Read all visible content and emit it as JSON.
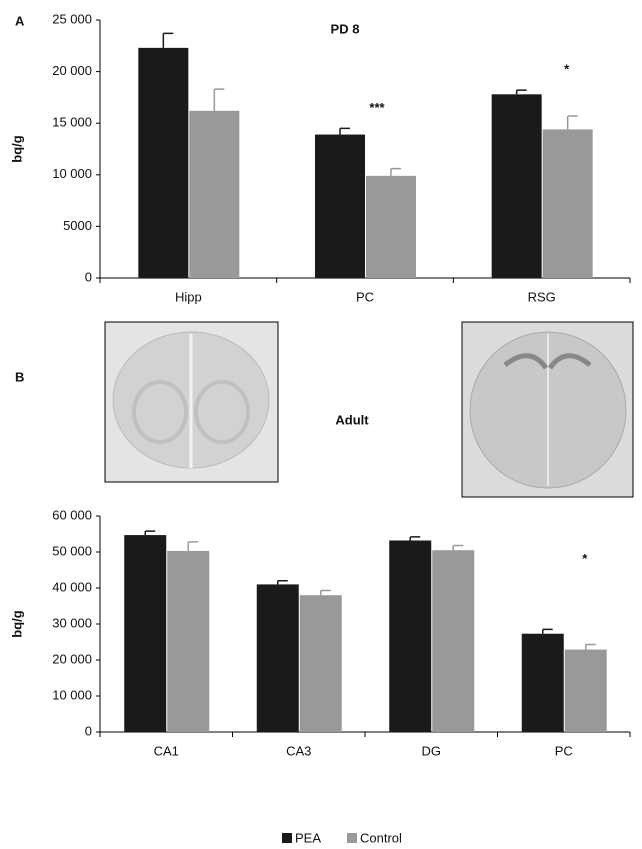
{
  "chart_data": [
    {
      "type": "bar",
      "panel": "A",
      "title": "PD 8",
      "y_label": "bq/g",
      "categories": [
        "Hipp",
        "PC",
        "RSG"
      ],
      "series": [
        {
          "color": "#1a1a1a",
          "values": [
            22300,
            13900,
            17800
          ],
          "errors": [
            1400,
            600,
            400
          ]
        },
        {
          "color": "#999999",
          "values": [
            16200,
            9900,
            14400
          ],
          "errors": [
            2100,
            700,
            1300
          ]
        }
      ],
      "significance": [
        null,
        "***",
        "*"
      ],
      "ylim": [
        0,
        25000
      ],
      "yticks": [
        0,
        5000,
        {
          "value": 10000,
          "label": "10 000"
        },
        {
          "value": 15000,
          "label": "15 000"
        },
        {
          "value": 20000,
          "label": "20 000"
        },
        {
          "value": 25000,
          "label": "25 000"
        }
      ]
    },
    {
      "type": "bar",
      "panel": "B",
      "title": "Adult",
      "y_label": "bq/g",
      "categories": [
        "CA1",
        "CA3",
        "DG",
        "PC"
      ],
      "series": [
        {
          "name": "PEA",
          "color": "#1a1a1a",
          "values": [
            54700,
            41000,
            53200,
            27300
          ],
          "errors": [
            1100,
            1000,
            1000,
            1200
          ]
        },
        {
          "name": "Control",
          "color": "#999999",
          "values": [
            50300,
            38000,
            50500,
            22900
          ],
          "errors": [
            2500,
            1300,
            1300,
            1400
          ]
        }
      ],
      "significance": [
        null,
        null,
        null,
        "*"
      ],
      "ylim": [
        0,
        60000
      ],
      "yticks": [
        0,
        {
          "value": 10000,
          "label": "10 000"
        },
        {
          "value": 20000,
          "label": "20 000"
        },
        {
          "value": 30000,
          "label": "30 000"
        },
        {
          "value": 40000,
          "label": "40 000"
        },
        {
          "value": 50000,
          "label": "50 000"
        },
        {
          "value": 60000,
          "label": "60 000"
        }
      ]
    }
  ]
}
